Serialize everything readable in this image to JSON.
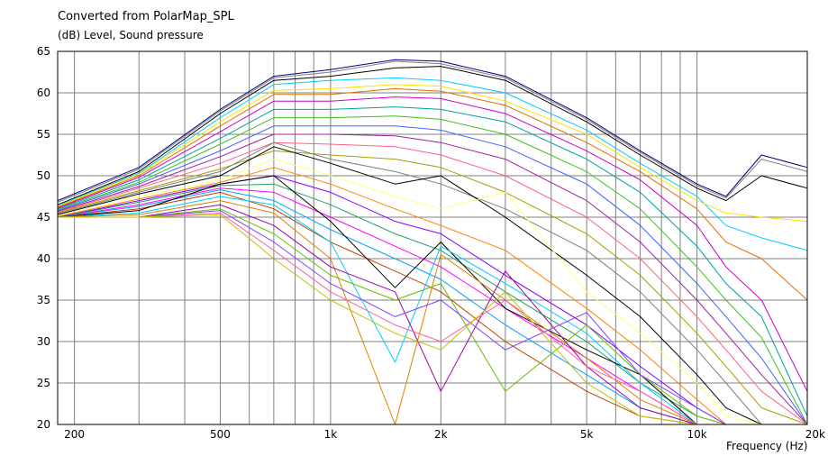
{
  "chart_data": {
    "type": "line",
    "title": "Converted from PolarMap_SPL",
    "ylabel": "(dB)  Level, Sound pressure",
    "xlabel": "Frequency  (Hz)",
    "xscale": "log",
    "xlim": [
      180,
      20000
    ],
    "ylim": [
      20,
      65
    ],
    "grid": true,
    "x_ticks": [
      {
        "v": 200,
        "label": "200"
      },
      {
        "v": 500,
        "label": "500"
      },
      {
        "v": 1000,
        "label": "1k"
      },
      {
        "v": 2000,
        "label": "2k"
      },
      {
        "v": 5000,
        "label": "5k"
      },
      {
        "v": 10000,
        "label": "10k"
      },
      {
        "v": 20000,
        "label": "20k"
      }
    ],
    "y_ticks": [
      65,
      60,
      55,
      50,
      45,
      40,
      35,
      30,
      25,
      20
    ],
    "x": [
      180,
      300,
      500,
      700,
      1000,
      1500,
      2000,
      3000,
      5000,
      7000,
      10000,
      12000,
      15000,
      20000
    ],
    "series": [
      {
        "color": "#000080",
        "values": [
          47.0,
          51.0,
          58.0,
          62.0,
          62.8,
          64.0,
          63.8,
          62.0,
          57.0,
          53.0,
          49.0,
          47.5,
          52.5,
          51.0
        ]
      },
      {
        "color": "#808080",
        "values": [
          46.8,
          50.8,
          57.8,
          61.8,
          62.5,
          63.8,
          63.5,
          61.8,
          56.8,
          52.8,
          48.8,
          47.3,
          52.0,
          50.5
        ]
      },
      {
        "color": "#000000",
        "values": [
          46.5,
          50.5,
          57.5,
          61.5,
          62.0,
          63.0,
          63.2,
          61.5,
          56.5,
          52.5,
          48.5,
          47.0,
          50.0,
          48.5
        ]
      },
      {
        "color": "#00ccff",
        "values": [
          46.4,
          50.3,
          57.0,
          61.0,
          61.5,
          61.8,
          61.5,
          60.0,
          55.5,
          51.5,
          47.5,
          44.0,
          42.5,
          41.0
        ]
      },
      {
        "color": "#ffe000",
        "values": [
          46.3,
          50.2,
          56.5,
          60.3,
          60.5,
          61.0,
          60.8,
          59.0,
          55.0,
          51.0,
          47.0,
          45.5,
          45.0,
          44.5
        ]
      },
      {
        "color": "#e07000",
        "values": [
          46.2,
          50.0,
          56.0,
          59.8,
          59.8,
          60.5,
          60.2,
          58.5,
          54.0,
          50.5,
          46.0,
          42.0,
          40.0,
          35.0
        ]
      },
      {
        "color": "#cc00cc",
        "values": [
          46.1,
          49.8,
          55.3,
          59.0,
          59.0,
          59.5,
          59.3,
          57.5,
          53.0,
          49.5,
          44.0,
          39.0,
          35.0,
          24.0
        ]
      },
      {
        "color": "#00a0a0",
        "values": [
          46.0,
          49.5,
          54.5,
          58.0,
          58.0,
          58.3,
          58.0,
          56.5,
          52.0,
          48.0,
          41.5,
          37.0,
          33.0,
          21.0
        ]
      },
      {
        "color": "#40c020",
        "values": [
          45.9,
          49.2,
          53.8,
          57.0,
          57.0,
          57.2,
          56.8,
          55.0,
          50.5,
          46.0,
          39.0,
          35.0,
          30.5,
          20.0
        ]
      },
      {
        "color": "#4060ff",
        "values": [
          45.8,
          49.0,
          53.0,
          56.0,
          56.0,
          56.0,
          55.5,
          53.5,
          49.0,
          44.0,
          37.0,
          33.0,
          28.0,
          20.0
        ]
      },
      {
        "color": "#a020a0",
        "values": [
          45.7,
          48.7,
          52.3,
          55.0,
          55.0,
          54.8,
          54.0,
          52.0,
          47.0,
          42.0,
          35.0,
          31.0,
          26.0,
          20.0
        ]
      },
      {
        "color": "#ff6080",
        "values": [
          45.6,
          48.5,
          51.5,
          54.0,
          53.8,
          53.5,
          52.5,
          50.0,
          45.0,
          40.0,
          33.0,
          29.0,
          24.0,
          20.0
        ]
      },
      {
        "color": "#a0a000",
        "values": [
          45.5,
          48.2,
          50.8,
          53.0,
          52.5,
          52.0,
          51.0,
          48.0,
          43.0,
          38.0,
          31.0,
          27.0,
          22.0,
          20.0
        ]
      },
      {
        "color": "#808080",
        "values": [
          45.4,
          48.0,
          50.5,
          54.0,
          52.0,
          50.5,
          49.0,
          46.0,
          41.0,
          36.0,
          29.0,
          25.0,
          20.0,
          20.0
        ]
      },
      {
        "color": "#000000",
        "values": [
          45.3,
          47.8,
          50.0,
          53.5,
          51.5,
          49.0,
          50.0,
          45.0,
          38.0,
          33.0,
          26.0,
          22.0,
          20.0,
          20.0
        ]
      },
      {
        "color": "#ffff80",
        "values": [
          45.2,
          47.5,
          49.5,
          52.0,
          50.0,
          47.5,
          46.0,
          48.0,
          36.0,
          31.0,
          25.0,
          21.0,
          20.0,
          20.0
        ]
      },
      {
        "color": "#ff8000",
        "values": [
          45.1,
          47.2,
          49.2,
          51.0,
          49.0,
          46.0,
          44.0,
          41.0,
          34.0,
          29.0,
          23.0,
          20.0,
          20.0,
          20.0
        ]
      },
      {
        "color": "#8000ff",
        "values": [
          45.0,
          47.0,
          49.0,
          50.0,
          48.0,
          44.5,
          43.0,
          38.0,
          32.0,
          27.0,
          22.0,
          20.0,
          20.0,
          20.0
        ]
      },
      {
        "color": "#20a060",
        "values": [
          45.0,
          46.8,
          48.8,
          49.0,
          46.5,
          43.0,
          41.0,
          36.0,
          30.0,
          25.0,
          21.0,
          20.0,
          20.0,
          20.0
        ]
      },
      {
        "color": "#ff00ff",
        "values": [
          45.0,
          46.5,
          48.5,
          48.0,
          45.0,
          41.5,
          39.0,
          34.0,
          28.0,
          24.0,
          20.0,
          20.0,
          20.0,
          20.0
        ]
      },
      {
        "color": "#00a0ff",
        "values": [
          45.0,
          46.3,
          48.3,
          47.0,
          43.5,
          40.0,
          37.5,
          32.0,
          26.0,
          22.0,
          20.0,
          20.0,
          20.0,
          20.0
        ]
      },
      {
        "color": "#c04000",
        "values": [
          45.0,
          46.0,
          48.0,
          46.0,
          42.0,
          38.5,
          36.0,
          30.0,
          24.0,
          21.0,
          20.0,
          20.0,
          20.0,
          20.0
        ]
      },
      {
        "color": "#000000",
        "values": [
          45.0,
          45.8,
          49.0,
          50.0,
          44.5,
          36.5,
          42.0,
          34.0,
          29.0,
          26.0,
          20.0,
          20.0,
          20.0,
          20.0
        ]
      },
      {
        "color": "#00ccff",
        "values": [
          45.0,
          45.5,
          47.5,
          46.5,
          42.0,
          27.5,
          41.5,
          37.0,
          31.0,
          25.0,
          20.0,
          20.0,
          20.0,
          20.0
        ]
      },
      {
        "color": "#e08000",
        "values": [
          45.0,
          45.3,
          47.0,
          45.5,
          40.0,
          20.0,
          40.5,
          35.0,
          28.0,
          23.0,
          20.0,
          20.0,
          20.0,
          20.0
        ]
      },
      {
        "color": "#a000a0",
        "values": [
          45.0,
          45.0,
          46.5,
          44.0,
          39.0,
          36.0,
          24.0,
          38.5,
          27.0,
          22.0,
          20.0,
          20.0,
          20.0,
          20.0
        ]
      },
      {
        "color": "#60c000",
        "values": [
          45.0,
          45.0,
          46.0,
          43.0,
          38.0,
          35.0,
          37.0,
          24.0,
          32.0,
          26.0,
          21.0,
          20.0,
          20.0,
          20.0
        ]
      },
      {
        "color": "#8040ff",
        "values": [
          45.0,
          45.0,
          45.8,
          42.0,
          37.0,
          33.0,
          35.0,
          29.0,
          33.5,
          26.0,
          22.0,
          20.0,
          20.0,
          20.0
        ]
      },
      {
        "color": "#ff60a0",
        "values": [
          45.0,
          45.0,
          45.5,
          41.0,
          36.0,
          32.0,
          30.0,
          35.0,
          27.0,
          24.0,
          20.0,
          20.0,
          20.0,
          20.0
        ]
      },
      {
        "color": "#c0c000",
        "values": [
          45.0,
          45.0,
          45.3,
          40.0,
          35.0,
          31.0,
          29.0,
          36.0,
          25.0,
          21.0,
          20.0,
          20.0,
          20.0,
          20.0
        ]
      }
    ]
  }
}
